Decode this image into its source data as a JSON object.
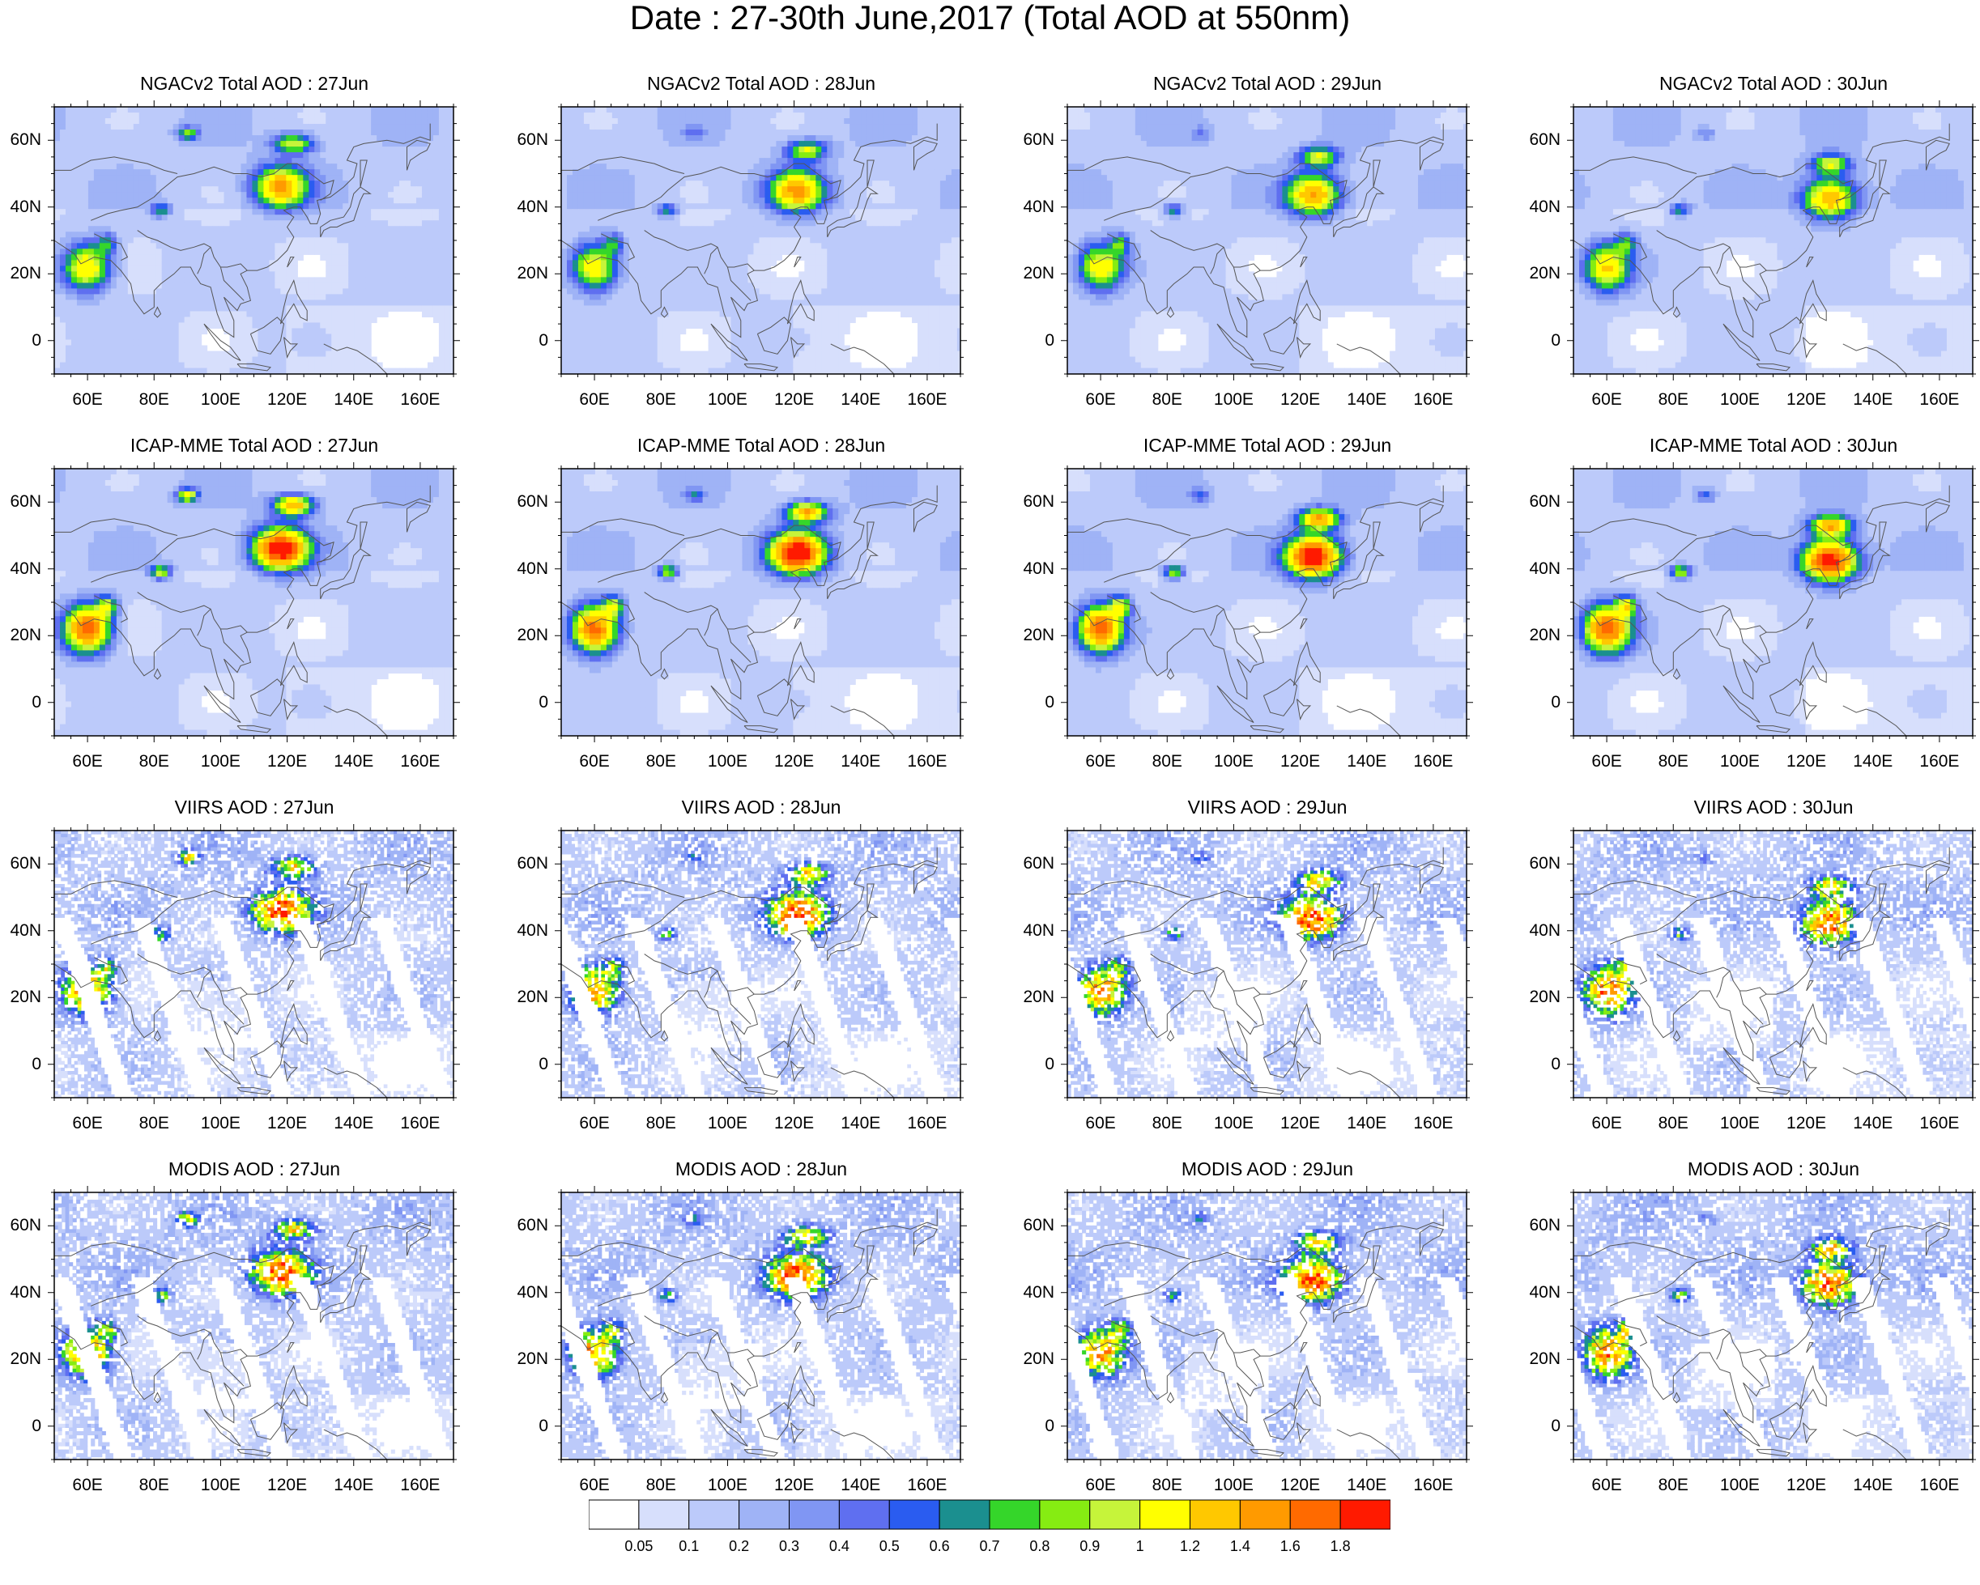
{
  "title": "Date : 27-30th June,2017 (Total AOD at 550nm)",
  "map": {
    "lon_range": [
      50,
      170
    ],
    "lat_range": [
      -10,
      70
    ],
    "lon_ticks": [
      "60E",
      "80E",
      "100E",
      "120E",
      "140E",
      "160E"
    ],
    "lat_ticks": [
      "60N",
      "40N",
      "20N",
      "0"
    ],
    "background_color": "#ffffff",
    "coastline_color": "#555555"
  },
  "panels": [
    {
      "title": "NGACv2 Total AOD : 27Jun",
      "product": "NGACv2",
      "date": "27Jun"
    },
    {
      "title": "NGACv2 Total AOD : 28Jun",
      "product": "NGACv2",
      "date": "28Jun"
    },
    {
      "title": "NGACv2 Total AOD : 29Jun",
      "product": "NGACv2",
      "date": "29Jun"
    },
    {
      "title": "NGACv2 Total AOD : 30Jun",
      "product": "NGACv2",
      "date": "30Jun"
    },
    {
      "title": "ICAP-MME Total AOD : 27Jun",
      "product": "ICAP-MME",
      "date": "27Jun"
    },
    {
      "title": "ICAP-MME Total AOD : 28Jun",
      "product": "ICAP-MME",
      "date": "28Jun"
    },
    {
      "title": "ICAP-MME Total AOD : 29Jun",
      "product": "ICAP-MME",
      "date": "29Jun"
    },
    {
      "title": "ICAP-MME Total AOD : 30Jun",
      "product": "ICAP-MME",
      "date": "30Jun"
    },
    {
      "title": "VIIRS AOD : 27Jun",
      "product": "VIIRS",
      "date": "27Jun"
    },
    {
      "title": "VIIRS AOD : 28Jun",
      "product": "VIIRS",
      "date": "28Jun"
    },
    {
      "title": "VIIRS AOD : 29Jun",
      "product": "VIIRS",
      "date": "29Jun"
    },
    {
      "title": "VIIRS AOD : 30Jun",
      "product": "VIIRS",
      "date": "30Jun"
    },
    {
      "title": "MODIS AOD : 27Jun",
      "product": "MODIS",
      "date": "27Jun"
    },
    {
      "title": "MODIS AOD : 28Jun",
      "product": "MODIS",
      "date": "28Jun"
    },
    {
      "title": "MODIS AOD : 29Jun",
      "product": "MODIS",
      "date": "29Jun"
    },
    {
      "title": "MODIS AOD : 30Jun",
      "product": "MODIS",
      "date": "30Jun"
    }
  ],
  "colorbar": {
    "levels": [
      "0.05",
      "0.1",
      "0.2",
      "0.3",
      "0.4",
      "0.5",
      "0.6",
      "0.7",
      "0.8",
      "0.9",
      "1",
      "1.2",
      "1.4",
      "1.6",
      "1.8"
    ],
    "colors": [
      "#ffffff",
      "#d7dffc",
      "#bccafa",
      "#9fb3f6",
      "#8096f3",
      "#5f6ff0",
      "#2a5cf0",
      "#1b8f8f",
      "#35d62a",
      "#86ec12",
      "#c6f43a",
      "#ffff00",
      "#ffc800",
      "#ff9a00",
      "#ff6a00",
      "#ff1a00"
    ]
  },
  "features": {
    "dust_pakistan": {
      "lon": 63,
      "lat": 22
    },
    "plume_north_china": {
      "lon": 118,
      "lat": 40
    },
    "plume_siberia": {
      "lon": 122,
      "lat": 59
    },
    "dust_taklamakan": {
      "lon": 82,
      "lat": 39
    }
  }
}
